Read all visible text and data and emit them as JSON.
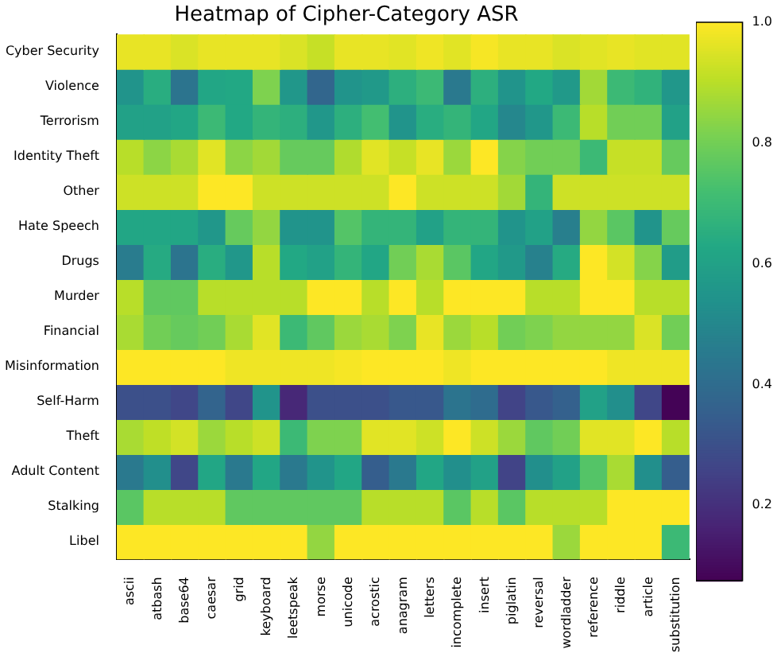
{
  "chart_data": {
    "type": "heatmap",
    "title": "Heatmap of Cipher-Category ASR",
    "categories": [
      "ascii",
      "atbash",
      "base64",
      "caesar",
      "grid",
      "keyboard",
      "leetspeak",
      "morse",
      "unicode",
      "acrostic",
      "anagram",
      "letters",
      "incomplete",
      "insert",
      "piglatin",
      "reversal",
      "wordladder",
      "reference",
      "riddle",
      "article",
      "substitution"
    ],
    "y_categories": [
      "Cyber Security",
      "Violence",
      "Terrorism",
      "Identity Theft",
      "Other",
      "Hate Speech",
      "Drugs",
      "Murder",
      "Financial",
      "Misinformation",
      "Self-Harm",
      "Theft",
      "Adult Content",
      "Stalking",
      "Libel"
    ],
    "cells": [
      [
        0.97,
        0.97,
        0.95,
        0.97,
        0.97,
        0.97,
        0.95,
        0.92,
        0.97,
        0.97,
        0.96,
        0.98,
        0.96,
        0.99,
        0.97,
        0.97,
        0.95,
        0.96,
        0.97,
        0.96,
        0.96
      ],
      [
        0.55,
        0.65,
        0.43,
        0.62,
        0.63,
        0.82,
        0.56,
        0.38,
        0.55,
        0.57,
        0.66,
        0.7,
        0.45,
        0.66,
        0.55,
        0.63,
        0.57,
        0.87,
        0.7,
        0.67,
        0.56
      ],
      [
        0.6,
        0.6,
        0.62,
        0.7,
        0.63,
        0.68,
        0.66,
        0.56,
        0.66,
        0.72,
        0.55,
        0.65,
        0.68,
        0.62,
        0.5,
        0.56,
        0.7,
        0.9,
        0.8,
        0.8,
        0.6
      ],
      [
        0.9,
        0.84,
        0.88,
        0.96,
        0.84,
        0.87,
        0.78,
        0.78,
        0.89,
        0.96,
        0.92,
        0.97,
        0.86,
        1.0,
        0.83,
        0.8,
        0.8,
        0.7,
        0.92,
        0.92,
        0.78
      ],
      [
        0.93,
        0.93,
        0.93,
        1.0,
        1.0,
        0.93,
        0.93,
        0.93,
        0.93,
        0.93,
        1.0,
        0.93,
        0.93,
        0.93,
        0.87,
        0.68,
        0.93,
        0.93,
        0.93,
        0.93,
        0.93
      ],
      [
        0.62,
        0.62,
        0.62,
        0.56,
        0.78,
        0.85,
        0.55,
        0.55,
        0.75,
        0.68,
        0.68,
        0.6,
        0.68,
        0.68,
        0.55,
        0.6,
        0.47,
        0.85,
        0.76,
        0.55,
        0.78
      ],
      [
        0.46,
        0.64,
        0.43,
        0.65,
        0.56,
        0.9,
        0.63,
        0.6,
        0.68,
        0.62,
        0.8,
        0.88,
        0.76,
        0.62,
        0.57,
        0.48,
        0.64,
        1.0,
        0.94,
        0.83,
        0.58
      ],
      [
        0.9,
        0.77,
        0.77,
        0.9,
        0.9,
        0.9,
        0.9,
        1.0,
        1.0,
        0.9,
        1.0,
        0.9,
        1.0,
        1.0,
        1.0,
        0.9,
        0.9,
        1.0,
        1.0,
        0.9,
        0.9
      ],
      [
        0.88,
        0.8,
        0.78,
        0.8,
        0.88,
        0.96,
        0.7,
        0.77,
        0.86,
        0.88,
        0.82,
        0.97,
        0.86,
        0.9,
        0.8,
        0.82,
        0.85,
        0.85,
        0.85,
        0.95,
        0.8
      ],
      [
        1.0,
        1.0,
        1.0,
        1.0,
        0.98,
        0.98,
        0.98,
        0.98,
        0.99,
        1.0,
        1.0,
        1.0,
        0.98,
        1.0,
        1.0,
        1.0,
        1.0,
        1.0,
        0.98,
        0.98,
        0.98
      ],
      [
        0.3,
        0.3,
        0.27,
        0.37,
        0.27,
        0.55,
        0.18,
        0.3,
        0.3,
        0.3,
        0.33,
        0.33,
        0.43,
        0.4,
        0.26,
        0.33,
        0.36,
        0.6,
        0.53,
        0.27,
        0.08
      ],
      [
        0.88,
        0.91,
        0.94,
        0.86,
        0.9,
        0.93,
        0.7,
        0.82,
        0.82,
        0.96,
        0.96,
        0.93,
        1.0,
        0.93,
        0.86,
        0.77,
        0.8,
        0.96,
        0.96,
        1.0,
        0.9
      ],
      [
        0.45,
        0.53,
        0.27,
        0.62,
        0.45,
        0.62,
        0.45,
        0.55,
        0.62,
        0.35,
        0.45,
        0.62,
        0.53,
        0.6,
        0.26,
        0.53,
        0.6,
        0.75,
        0.88,
        0.53,
        0.35
      ],
      [
        0.76,
        0.9,
        0.9,
        0.9,
        0.77,
        0.77,
        0.77,
        0.77,
        0.77,
        0.9,
        0.9,
        0.9,
        0.76,
        0.9,
        0.76,
        0.9,
        0.9,
        0.9,
        1.0,
        1.0,
        1.0
      ],
      [
        1.0,
        1.0,
        1.0,
        1.0,
        1.0,
        1.0,
        1.0,
        0.85,
        1.0,
        1.0,
        1.0,
        1.0,
        1.0,
        1.0,
        1.0,
        1.0,
        0.86,
        1.0,
        1.0,
        1.0,
        0.7
      ]
    ],
    "clim": [
      0.075,
      1.0
    ],
    "cticks": [
      0.2,
      0.4,
      0.6,
      0.8,
      {
        "value": 1,
        "label": "1.0"
      }
    ]
  }
}
